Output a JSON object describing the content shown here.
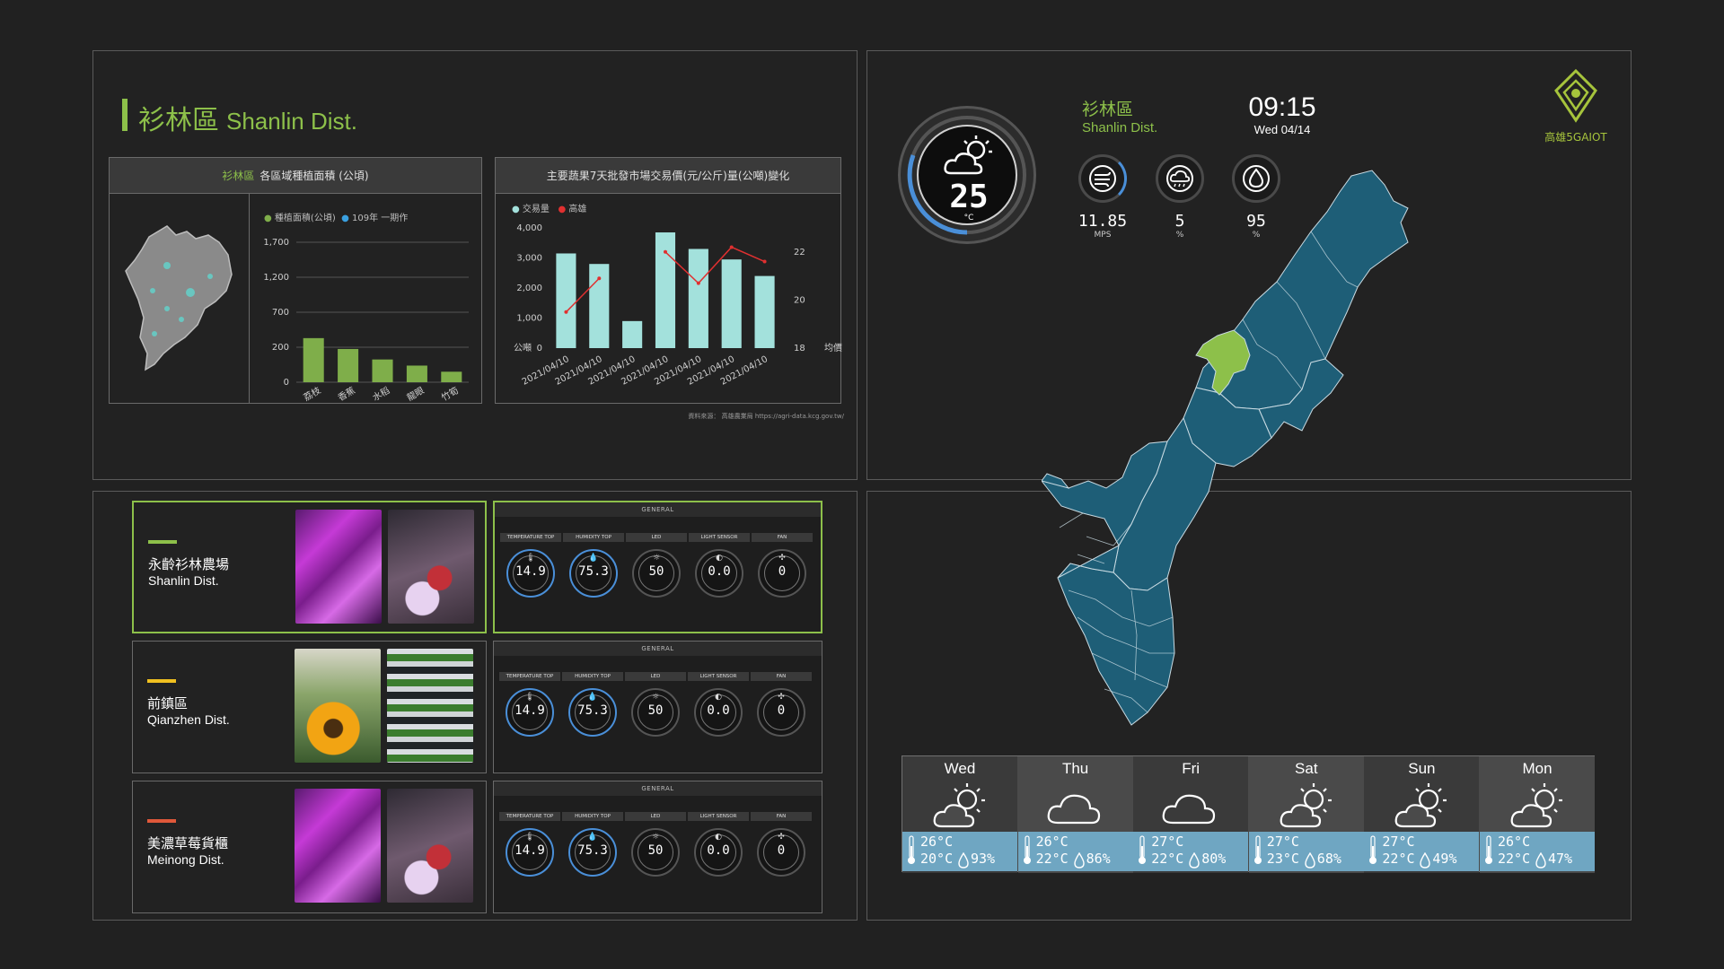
{
  "left_top": {
    "title_zh": "衫林區",
    "title_en": "Shanlin Dist.",
    "area_card": {
      "title_hl": "衫林區",
      "title": "各區域種植面積 (公頃)",
      "legend": [
        "種植面積(公頃)",
        "109年 一期作"
      ]
    },
    "price_card": {
      "title": "主要蔬果7天批發市場交易價(元/公斤)量(公噸)變化",
      "legend": [
        "交易量",
        "高雄"
      ],
      "source": "資料來源： 高雄農業局 https://agri-data.kcg.gov.tw/"
    }
  },
  "chart_data": [
    {
      "type": "bar",
      "categories": [
        "荔枝",
        "香蕉",
        "水稻",
        "龍眼",
        "竹筍"
      ],
      "values": [
        330,
        190,
        130,
        95,
        60
      ],
      "y_ticks": [
        "1,700",
        "1,200",
        "700",
        "200",
        "0"
      ],
      "series": [
        {
          "name": "種植面積(公頃)",
          "color": "#7fae4a"
        }
      ],
      "legend": [
        "種植面積(公頃)",
        "109年 一期作"
      ]
    },
    {
      "type": "bar",
      "categories": [
        "2021/04/10",
        "2021/04/10",
        "2021/04/10",
        "2021/04/10",
        "2021/04/10",
        "2021/04/10",
        "2021/04/10"
      ],
      "series": [
        {
          "name": "交易量",
          "type": "bar",
          "values": [
            3150,
            2800,
            900,
            3850,
            3300,
            2950,
            2400
          ],
          "color": "#a3e1dc"
        },
        {
          "name": "高雄",
          "type": "line",
          "values": [
            19.5,
            20.9,
            null,
            22.0,
            20.7,
            22.2,
            21.6
          ],
          "color": "#e03030"
        }
      ],
      "y_left_ticks": [
        "4,000",
        "3,000",
        "2,000",
        "1,000",
        "0"
      ],
      "y_left_unit": "公噸",
      "y_right_ticks": [
        "22",
        "20",
        "18"
      ],
      "y_right_unit": "均價"
    }
  ],
  "farms": [
    {
      "zh": "永齡衫林農場",
      "en": "Shanlin Dist.",
      "color": "#8dc04a"
    },
    {
      "zh": "前鎮區",
      "en": "Qianzhen Dist.",
      "color": "#f0c020"
    },
    {
      "zh": "美濃草莓貨櫃",
      "en": "Meinong Dist.",
      "color": "#e0583a"
    }
  ],
  "sensor_panel": {
    "header": "GENERAL",
    "gauges": [
      {
        "label": "TEMPERATURE TOP",
        "value": "14.9",
        "icon": "thermometer-icon"
      },
      {
        "label": "HUMIDITY TOP",
        "value": "75.3",
        "icon": "droplet-icon"
      },
      {
        "label": "LED",
        "value": "50",
        "icon": "sun-icon"
      },
      {
        "label": "LIGHT SENSOR",
        "value": "0.0",
        "icon": "light-icon"
      },
      {
        "label": "FAN",
        "value": "0",
        "icon": "fan-icon"
      }
    ]
  },
  "weather_now": {
    "location_zh": "衫林區",
    "location_en": "Shanlin Dist.",
    "time": "09:15",
    "date": "Wed 04/14",
    "temperature": "25",
    "unit": "°C",
    "wind": {
      "value": "11.85",
      "unit": "MPS"
    },
    "rain": {
      "value": "5",
      "unit": "%"
    },
    "humidity": {
      "value": "95",
      "unit": "%"
    }
  },
  "brand": "高雄5GAIOT",
  "forecast": [
    {
      "day": "Wed",
      "icon": "partly-cloudy-icon",
      "high": "26°C",
      "low": "20°C",
      "humidity": "93%"
    },
    {
      "day": "Thu",
      "icon": "cloud-icon",
      "high": "26°C",
      "low": "22°C",
      "humidity": "86%"
    },
    {
      "day": "Fri",
      "icon": "cloud-icon",
      "high": "27°C",
      "low": "22°C",
      "humidity": "80%"
    },
    {
      "day": "Sat",
      "icon": "partly-cloudy-icon",
      "high": "27°C",
      "low": "23°C",
      "humidity": "68%"
    },
    {
      "day": "Sun",
      "icon": "partly-cloudy-icon",
      "high": "27°C",
      "low": "22°C",
      "humidity": "49%"
    },
    {
      "day": "Mon",
      "icon": "partly-cloudy-icon",
      "high": "26°C",
      "low": "22°C",
      "humidity": "47%"
    }
  ]
}
